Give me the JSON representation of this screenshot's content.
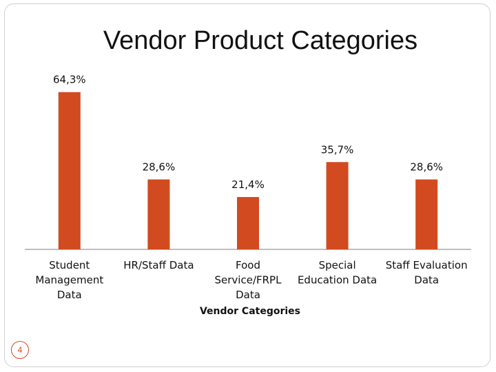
{
  "slide": {
    "title": "Vendor Product Categories",
    "number": "4"
  },
  "chart_data": {
    "type": "bar",
    "title": "Vendor Product Categories",
    "xlabel": "Vendor Categories",
    "ylabel": "",
    "categories": [
      [
        "Student",
        "Management",
        "Data"
      ],
      [
        "HR/Staff Data"
      ],
      [
        "Food",
        "Service/FRPL",
        "Data"
      ],
      [
        "Special",
        "Education Data"
      ],
      [
        "Staff Evaluation",
        "Data"
      ]
    ],
    "values": [
      64.3,
      28.6,
      21.4,
      35.7,
      28.6
    ],
    "data_labels": [
      "64,3%",
      "28,6%",
      "21,4%",
      "35,7%",
      "28,6%"
    ],
    "ylim": [
      0,
      70
    ],
    "bar_color": "#d24a1f",
    "axis_color": "#a8a8a8",
    "grid": false,
    "legend": "none"
  }
}
